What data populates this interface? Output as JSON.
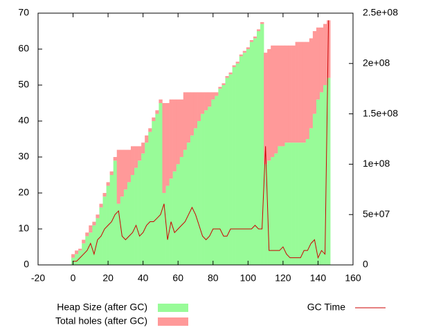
{
  "chart_data": {
    "type": "stacked-bar-line",
    "x": [
      0,
      2,
      4,
      6,
      8,
      10,
      12,
      14,
      16,
      18,
      20,
      22,
      24,
      26,
      28,
      30,
      32,
      34,
      36,
      38,
      40,
      42,
      44,
      46,
      48,
      50,
      52,
      54,
      56,
      58,
      60,
      62,
      64,
      66,
      68,
      70,
      72,
      74,
      76,
      78,
      80,
      82,
      84,
      86,
      88,
      90,
      92,
      94,
      96,
      98,
      100,
      102,
      104,
      106,
      108,
      110,
      112,
      114,
      116,
      118,
      120,
      122,
      124,
      126,
      128,
      130,
      132,
      134,
      136,
      138,
      140,
      142,
      144,
      146
    ],
    "xlim": [
      -20,
      160
    ],
    "xticks": [
      -20,
      0,
      20,
      40,
      60,
      80,
      100,
      120,
      140,
      160
    ],
    "ylim": [
      0,
      70
    ],
    "yticks": [
      0,
      10,
      20,
      30,
      40,
      50,
      60,
      70
    ],
    "y2lim": [
      0,
      250000000
    ],
    "y2ticks": [
      0,
      {
        "value": 50000000,
        "label": "5e+07"
      },
      {
        "value": 100000000,
        "label": "1e+08"
      },
      {
        "value": 150000000,
        "label": "1.5e+08"
      },
      {
        "value": 200000000,
        "label": "2e+08"
      },
      {
        "value": 250000000,
        "label": "2.5e+08"
      }
    ],
    "legend": "bottom",
    "series": [
      {
        "name": "Heap Size (after GC)",
        "color": "#98fb98",
        "kind": "bar",
        "values": [
          2,
          3,
          4,
          6,
          8,
          9,
          11,
          13,
          16,
          19,
          22,
          25,
          29,
          17,
          19,
          21,
          23,
          25,
          27,
          29,
          31,
          34,
          37,
          40,
          42,
          45,
          20,
          22,
          24,
          26,
          28,
          30,
          32,
          34,
          36,
          38,
          40,
          42,
          43,
          44,
          46,
          47,
          49,
          50,
          52,
          53,
          55,
          56,
          58,
          59,
          60,
          62,
          63,
          65,
          67,
          28,
          29,
          30,
          31,
          33,
          33,
          34,
          34,
          34,
          34,
          34,
          34,
          35,
          38,
          42,
          46,
          48,
          50,
          52
        ]
      },
      {
        "name": "Total holes (after GC)",
        "color": "#ff9999",
        "kind": "bar",
        "values": [
          1,
          1,
          0.5,
          1,
          1,
          2,
          1,
          1,
          1,
          1,
          1,
          1,
          1,
          15,
          13,
          11,
          9,
          8,
          6,
          4,
          3,
          2,
          1,
          1,
          1,
          1,
          25,
          23,
          22,
          20,
          18,
          16,
          16,
          14,
          12,
          10,
          8,
          6,
          5,
          4,
          2,
          1,
          0.5,
          0.5,
          0.5,
          0.5,
          0.5,
          0.5,
          0.5,
          0.5,
          0.5,
          0.5,
          0.5,
          0.5,
          0.5,
          31,
          31,
          31,
          30,
          28,
          28,
          27,
          27,
          27,
          28,
          28,
          28,
          27,
          25,
          23,
          20,
          18,
          17,
          16
        ]
      },
      {
        "name": "GC Time",
        "color": "#cc0000",
        "kind": "line",
        "axis": "y2",
        "values": [
          3600000,
          3600000,
          7100000,
          10700000,
          14300000,
          21400000,
          10700000,
          25000000,
          28600000,
          35700000,
          39300000,
          42900000,
          50000000,
          53600000,
          28600000,
          25000000,
          28600000,
          32100000,
          39300000,
          28600000,
          32100000,
          39300000,
          42900000,
          42900000,
          46400000,
          50000000,
          60700000,
          25000000,
          42900000,
          32100000,
          35700000,
          39300000,
          42900000,
          50000000,
          57100000,
          50000000,
          39300000,
          28600000,
          25000000,
          28600000,
          35700000,
          35700000,
          35700000,
          28600000,
          28600000,
          35700000,
          35700000,
          35700000,
          35700000,
          35700000,
          35700000,
          35700000,
          39300000,
          35700000,
          35700000,
          117900000,
          14300000,
          14300000,
          14300000,
          14300000,
          17900000,
          10700000,
          7100000,
          7100000,
          7100000,
          7100000,
          14300000,
          14300000,
          21400000,
          25000000,
          7100000,
          14300000,
          10700000,
          242900000
        ]
      }
    ]
  }
}
